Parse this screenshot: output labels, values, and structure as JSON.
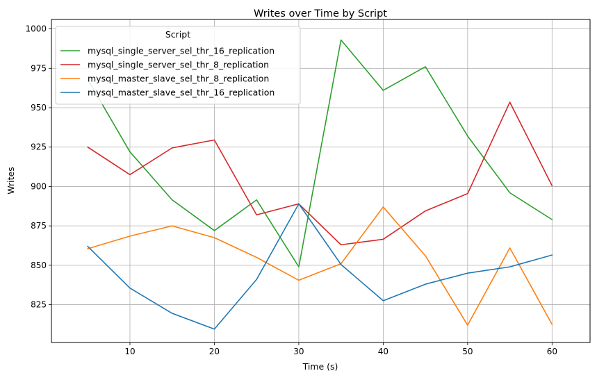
{
  "chart_data": {
    "type": "line",
    "title": "Writes over Time by Script",
    "xlabel": "Time (s)",
    "ylabel": "Writes",
    "x": [
      5,
      10,
      15,
      20,
      25,
      30,
      35,
      40,
      45,
      50,
      55,
      60
    ],
    "xticks": [
      10,
      20,
      30,
      40,
      50,
      60
    ],
    "yticks": [
      825,
      850,
      875,
      900,
      925,
      950,
      975,
      1000
    ],
    "xlim": [
      0.7,
      64.5
    ],
    "ylim": [
      801,
      1006
    ],
    "grid": true,
    "legend": {
      "title": "Script",
      "placement": "upper-left"
    },
    "series": [
      {
        "name": "mysql_single_server_sel_thr_16_replication",
        "color": "#2ca02c",
        "values": [
          968,
          922,
          891.5,
          872,
          891.5,
          849,
          993,
          961,
          976,
          932,
          896,
          879
        ]
      },
      {
        "name": "mysql_single_server_sel_thr_8_replication",
        "color": "#d62728",
        "values": [
          925,
          907.5,
          924.5,
          929.5,
          882,
          889,
          863,
          866.5,
          884.5,
          895.5,
          953.5,
          900.5
        ]
      },
      {
        "name": "mysql_master_slave_sel_thr_8_replication",
        "color": "#ff7f0e",
        "values": [
          860.5,
          868.5,
          875,
          867.5,
          855,
          840.5,
          851,
          887,
          856,
          812,
          861,
          812.5
        ]
      },
      {
        "name": "mysql_master_slave_sel_thr_16_replication",
        "color": "#1f77b4",
        "values": [
          862,
          835.5,
          819.5,
          809.5,
          841,
          889,
          850.5,
          827.5,
          838,
          845,
          849,
          856.5
        ]
      }
    ]
  }
}
